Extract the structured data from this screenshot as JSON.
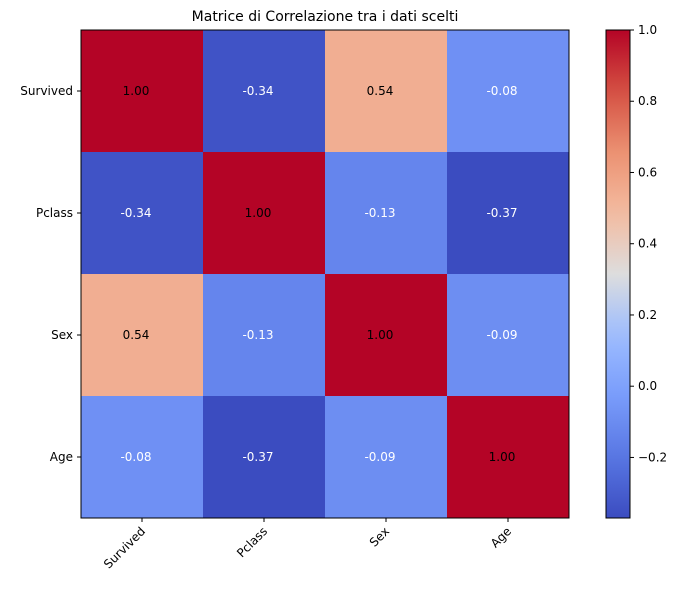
{
  "chart_data": {
    "type": "heatmap",
    "title": "Matrice di Correlazione tra i dati scelti",
    "x_categories": [
      "Survived",
      "Pclass",
      "Sex",
      "Age"
    ],
    "y_categories": [
      "Survived",
      "Pclass",
      "Sex",
      "Age"
    ],
    "values": [
      [
        1.0,
        -0.34,
        0.54,
        -0.08
      ],
      [
        -0.34,
        1.0,
        -0.13,
        -0.37
      ],
      [
        0.54,
        -0.13,
        1.0,
        -0.09
      ],
      [
        -0.08,
        -0.37,
        -0.09,
        1.0
      ]
    ],
    "cell_labels": [
      [
        "1.00",
        "-0.34",
        "0.54",
        "-0.08"
      ],
      [
        "-0.34",
        "1.00",
        "-0.13",
        "-0.37"
      ],
      [
        "0.54",
        "-0.13",
        "1.00",
        "-0.09"
      ],
      [
        "-0.08",
        "-0.37",
        "-0.09",
        "1.00"
      ]
    ],
    "colormap": "coolwarm",
    "color_range": [
      -0.37,
      1.0
    ],
    "colorbar_ticks": [
      -0.2,
      0.0,
      0.2,
      0.4,
      0.6,
      0.8,
      1.0
    ],
    "colorbar_tick_labels": [
      "−0.2",
      "0.0",
      "0.2",
      "0.4",
      "0.6",
      "0.8",
      "1.0"
    ],
    "x_tick_rotation": 45,
    "label_colors": {
      "high": "#000000",
      "low": "#ffffff"
    }
  }
}
